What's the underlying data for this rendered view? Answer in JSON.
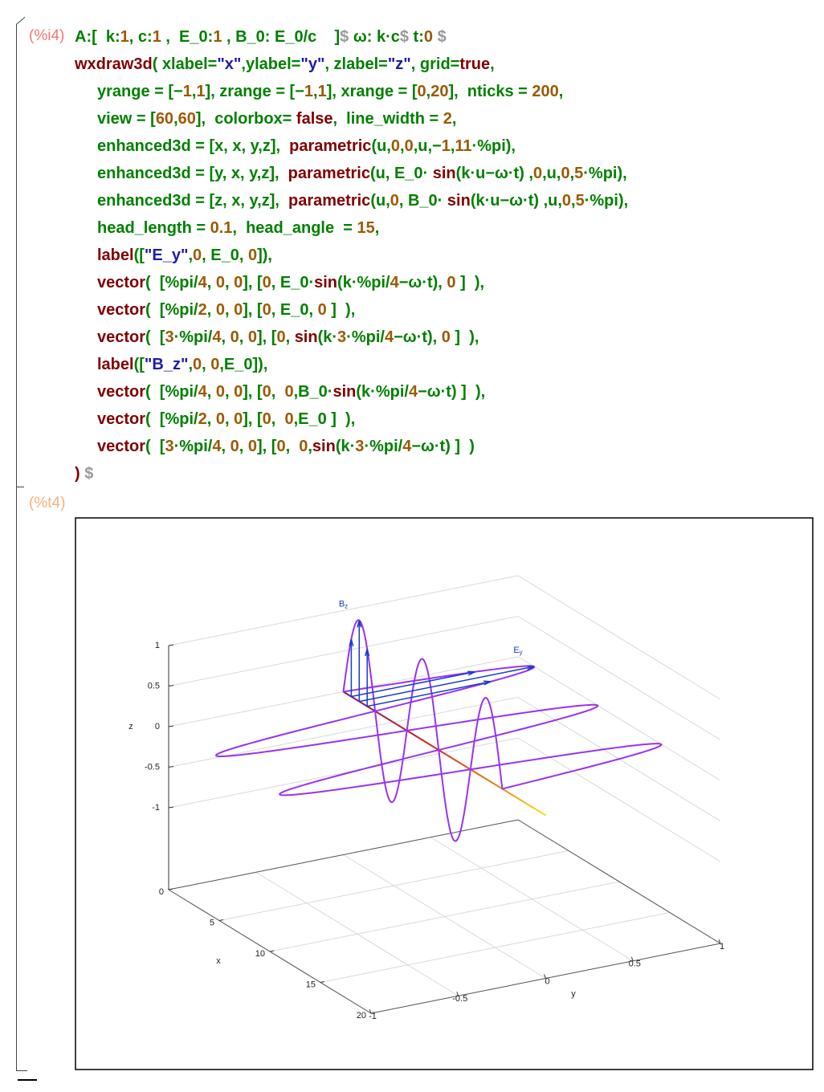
{
  "input": {
    "prompt": "(%i4)",
    "lines": [
      [
        [
          "A:[  k:",
          "#008000"
        ],
        [
          "1",
          "#9b5a00"
        ],
        [
          ", c:",
          "#008000"
        ],
        [
          "1",
          "#9b5a00"
        ],
        [
          " ,  E_0:",
          "#008000"
        ],
        [
          "1",
          "#9b5a00"
        ],
        [
          " , B_0: E_0/c    ]",
          "#008000"
        ],
        [
          "$",
          "#999999"
        ],
        [
          " ω: k·c",
          "#008000"
        ],
        [
          "$",
          "#999999"
        ],
        [
          " t:",
          "#008000"
        ],
        [
          "0",
          "#9b5a00"
        ],
        [
          " $",
          "#999999"
        ]
      ],
      [
        [
          "wxdraw3d",
          "#800000"
        ],
        [
          "( xlabel=",
          "#008000"
        ],
        [
          "\"x\"",
          "#1c1ca8"
        ],
        [
          ",ylabel=",
          "#008000"
        ],
        [
          "\"y\"",
          "#1c1ca8"
        ],
        [
          ", zlabel=",
          "#008000"
        ],
        [
          "\"z\"",
          "#1c1ca8"
        ],
        [
          ", grid=",
          "#008000"
        ],
        [
          "true",
          "#800000"
        ],
        [
          ",",
          "#008000"
        ]
      ],
      [
        [
          "yrange = [−",
          "#008000"
        ],
        [
          "1",
          "#9b5a00"
        ],
        [
          ",",
          "#008000"
        ],
        [
          "1",
          "#9b5a00"
        ],
        [
          "], zrange = [−",
          "#008000"
        ],
        [
          "1",
          "#9b5a00"
        ],
        [
          ",",
          "#008000"
        ],
        [
          "1",
          "#9b5a00"
        ],
        [
          "], xrange = [",
          "#008000"
        ],
        [
          "0",
          "#9b5a00"
        ],
        [
          ",",
          "#008000"
        ],
        [
          "20",
          "#9b5a00"
        ],
        [
          "],  nticks = ",
          "#008000"
        ],
        [
          "200",
          "#9b5a00"
        ],
        [
          ",",
          "#008000"
        ]
      ],
      [
        [
          "view = [",
          "#008000"
        ],
        [
          "60",
          "#9b5a00"
        ],
        [
          ",",
          "#008000"
        ],
        [
          "60",
          "#9b5a00"
        ],
        [
          "],  colorbox= ",
          "#008000"
        ],
        [
          "false",
          "#800000"
        ],
        [
          ",  line_width = ",
          "#008000"
        ],
        [
          "2",
          "#9b5a00"
        ],
        [
          ",",
          "#008000"
        ]
      ],
      [
        [
          "enhanced3d = [x, x, y,z],  ",
          "#008000"
        ],
        [
          "parametric",
          "#800000"
        ],
        [
          "(u,",
          "#008000"
        ],
        [
          "0",
          "#9b5a00"
        ],
        [
          ",",
          "#008000"
        ],
        [
          "0",
          "#9b5a00"
        ],
        [
          ",u,−",
          "#008000"
        ],
        [
          "1",
          "#9b5a00"
        ],
        [
          ",",
          "#008000"
        ],
        [
          "11",
          "#9b5a00"
        ],
        [
          "·%pi),",
          "#008000"
        ]
      ],
      [
        [
          "enhanced3d = [y, x, y,z],  ",
          "#008000"
        ],
        [
          "parametric",
          "#800000"
        ],
        [
          "(u, E_0· ",
          "#008000"
        ],
        [
          "sin",
          "#800000"
        ],
        [
          "(k·u−ω·t) ,",
          "#008000"
        ],
        [
          "0",
          "#9b5a00"
        ],
        [
          ",u,",
          "#008000"
        ],
        [
          "0",
          "#9b5a00"
        ],
        [
          ",",
          "#008000"
        ],
        [
          "5",
          "#9b5a00"
        ],
        [
          "·%pi),",
          "#008000"
        ]
      ],
      [
        [
          "enhanced3d = [z, x, y,z],  ",
          "#008000"
        ],
        [
          "parametric",
          "#800000"
        ],
        [
          "(u,",
          "#008000"
        ],
        [
          "0",
          "#9b5a00"
        ],
        [
          ", B_0· ",
          "#008000"
        ],
        [
          "sin",
          "#800000"
        ],
        [
          "(k·u−ω·t) ,u,",
          "#008000"
        ],
        [
          "0",
          "#9b5a00"
        ],
        [
          ",",
          "#008000"
        ],
        [
          "5",
          "#9b5a00"
        ],
        [
          "·%pi),",
          "#008000"
        ]
      ],
      [
        [
          "head_length = ",
          "#008000"
        ],
        [
          "0.1",
          "#9b5a00"
        ],
        [
          ",  head_angle  = ",
          "#008000"
        ],
        [
          "15",
          "#9b5a00"
        ],
        [
          ",",
          "#008000"
        ]
      ],
      [
        [
          "label",
          "#800000"
        ],
        [
          "([",
          "#008000"
        ],
        [
          "\"E_y\"",
          "#1c1ca8"
        ],
        [
          ",",
          "#008000"
        ],
        [
          "0",
          "#9b5a00"
        ],
        [
          ", E_0, ",
          "#008000"
        ],
        [
          "0",
          "#9b5a00"
        ],
        [
          "]),",
          "#008000"
        ]
      ],
      [
        [
          "vector",
          "#800000"
        ],
        [
          "(  [%pi/",
          "#008000"
        ],
        [
          "4",
          "#9b5a00"
        ],
        [
          ", ",
          "#008000"
        ],
        [
          "0",
          "#9b5a00"
        ],
        [
          ", ",
          "#008000"
        ],
        [
          "0",
          "#9b5a00"
        ],
        [
          "], [",
          "#008000"
        ],
        [
          "0",
          "#9b5a00"
        ],
        [
          ", E_0·",
          "#008000"
        ],
        [
          "sin",
          "#800000"
        ],
        [
          "(k·%pi/",
          "#008000"
        ],
        [
          "4",
          "#9b5a00"
        ],
        [
          "−ω·t), ",
          "#008000"
        ],
        [
          "0",
          "#9b5a00"
        ],
        [
          " ]  ),",
          "#008000"
        ]
      ],
      [
        [
          "vector",
          "#800000"
        ],
        [
          "(  [%pi/",
          "#008000"
        ],
        [
          "2",
          "#9b5a00"
        ],
        [
          ", ",
          "#008000"
        ],
        [
          "0",
          "#9b5a00"
        ],
        [
          ", ",
          "#008000"
        ],
        [
          "0",
          "#9b5a00"
        ],
        [
          "], [",
          "#008000"
        ],
        [
          "0",
          "#9b5a00"
        ],
        [
          ", E_0, ",
          "#008000"
        ],
        [
          "0",
          "#9b5a00"
        ],
        [
          " ]  ),",
          "#008000"
        ]
      ],
      [
        [
          "vector",
          "#800000"
        ],
        [
          "(  [",
          "#008000"
        ],
        [
          "3",
          "#9b5a00"
        ],
        [
          "·%pi/",
          "#008000"
        ],
        [
          "4",
          "#9b5a00"
        ],
        [
          ", ",
          "#008000"
        ],
        [
          "0",
          "#9b5a00"
        ],
        [
          ", ",
          "#008000"
        ],
        [
          "0",
          "#9b5a00"
        ],
        [
          "], [",
          "#008000"
        ],
        [
          "0",
          "#9b5a00"
        ],
        [
          ", ",
          "#008000"
        ],
        [
          "sin",
          "#800000"
        ],
        [
          "(k·",
          "#008000"
        ],
        [
          "3",
          "#9b5a00"
        ],
        [
          "·%pi/",
          "#008000"
        ],
        [
          "4",
          "#9b5a00"
        ],
        [
          "−ω·t), ",
          "#008000"
        ],
        [
          "0",
          "#9b5a00"
        ],
        [
          " ]  ),",
          "#008000"
        ]
      ],
      [
        [
          "label",
          "#800000"
        ],
        [
          "([",
          "#008000"
        ],
        [
          "\"B_z\"",
          "#1c1ca8"
        ],
        [
          ",",
          "#008000"
        ],
        [
          "0",
          "#9b5a00"
        ],
        [
          ", ",
          "#008000"
        ],
        [
          "0",
          "#9b5a00"
        ],
        [
          ",E_0]),",
          "#008000"
        ]
      ],
      [
        [
          "vector",
          "#800000"
        ],
        [
          "(  [%pi/",
          "#008000"
        ],
        [
          "4",
          "#9b5a00"
        ],
        [
          ", ",
          "#008000"
        ],
        [
          "0",
          "#9b5a00"
        ],
        [
          ", ",
          "#008000"
        ],
        [
          "0",
          "#9b5a00"
        ],
        [
          "], [",
          "#008000"
        ],
        [
          "0",
          "#9b5a00"
        ],
        [
          ",  ",
          "#008000"
        ],
        [
          "0",
          "#9b5a00"
        ],
        [
          ",B_0·",
          "#008000"
        ],
        [
          "sin",
          "#800000"
        ],
        [
          "(k·%pi/",
          "#008000"
        ],
        [
          "4",
          "#9b5a00"
        ],
        [
          "−ω·t) ]  ),",
          "#008000"
        ]
      ],
      [
        [
          "vector",
          "#800000"
        ],
        [
          "(  [%pi/",
          "#008000"
        ],
        [
          "2",
          "#9b5a00"
        ],
        [
          ", ",
          "#008000"
        ],
        [
          "0",
          "#9b5a00"
        ],
        [
          ", ",
          "#008000"
        ],
        [
          "0",
          "#9b5a00"
        ],
        [
          "], [",
          "#008000"
        ],
        [
          "0",
          "#9b5a00"
        ],
        [
          ",  ",
          "#008000"
        ],
        [
          "0",
          "#9b5a00"
        ],
        [
          ",E_0 ]  ),",
          "#008000"
        ]
      ],
      [
        [
          "vector",
          "#800000"
        ],
        [
          "(  [",
          "#008000"
        ],
        [
          "3",
          "#9b5a00"
        ],
        [
          "·%pi/",
          "#008000"
        ],
        [
          "4",
          "#9b5a00"
        ],
        [
          ", ",
          "#008000"
        ],
        [
          "0",
          "#9b5a00"
        ],
        [
          ", ",
          "#008000"
        ],
        [
          "0",
          "#9b5a00"
        ],
        [
          "], [",
          "#008000"
        ],
        [
          "0",
          "#9b5a00"
        ],
        [
          ",  ",
          "#008000"
        ],
        [
          "0",
          "#9b5a00"
        ],
        [
          ",",
          "#008000"
        ],
        [
          "sin",
          "#800000"
        ],
        [
          "(k·",
          "#008000"
        ],
        [
          "3",
          "#9b5a00"
        ],
        [
          "·%pi/",
          "#008000"
        ],
        [
          "4",
          "#9b5a00"
        ],
        [
          "−ω·t) ]  )",
          "#008000"
        ]
      ],
      [
        [
          ")",
          "#800000"
        ],
        [
          " $",
          "#999999"
        ]
      ]
    ]
  },
  "output": {
    "prompt": "(%t4)",
    "plot": {
      "xlabel": "x",
      "ylabel": "y",
      "zlabel": "z",
      "xlim": [
        0,
        20
      ],
      "ylim": [
        -1,
        1
      ],
      "zlim": [
        -1,
        1
      ],
      "xticks": [
        0,
        5,
        10,
        15,
        20
      ],
      "yticks": [
        -1,
        -0.5,
        0,
        0.5,
        1
      ],
      "zticks": [
        -1,
        -0.5,
        0,
        0.5,
        1
      ],
      "grid": true,
      "labels": [
        {
          "base": "B",
          "sub": "z"
        },
        {
          "base": "E",
          "sub": "y"
        }
      ]
    }
  }
}
